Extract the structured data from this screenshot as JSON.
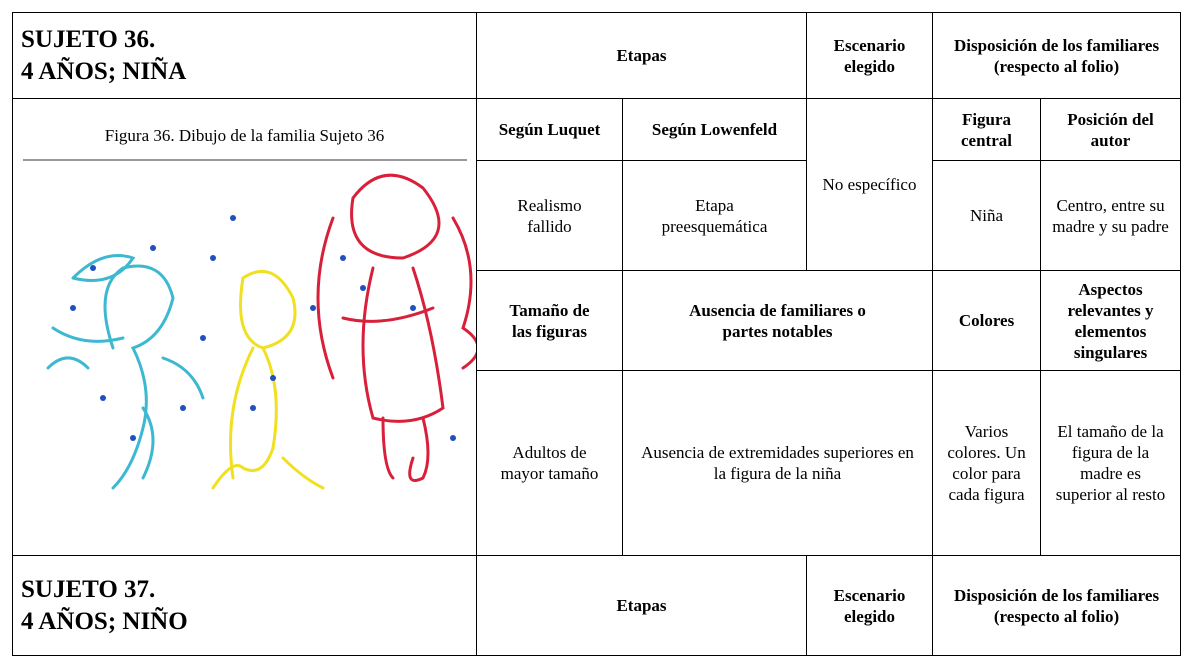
{
  "subjects": [
    {
      "title": "SUJETO 36.",
      "subtitle": "4 AÑOS; NIÑA",
      "header": {
        "stages": "Etapas",
        "scenario": "Escenario elegido",
        "layout": "Disposición de los familiares (respecto al folio)"
      },
      "figure_caption": "Figura 36. Dibujo de la familia Sujeto 36",
      "subheader": {
        "luquet": "Según Luquet",
        "lowenfeld": "Según Lowenfeld",
        "central": "Figura central",
        "author": "Posición del autor"
      },
      "values": {
        "luquet": "Realismo fallido",
        "lowenfeld": "Etapa preesquemática",
        "scenario": "No específico",
        "central": "Niña",
        "author": "Centro, entre su madre y su padre"
      },
      "subheader2": {
        "size": "Tamaño de las figuras",
        "absence": "Ausencia de familiares o partes notables",
        "colors": "Colores",
        "aspects": "Aspectos relevantes y elementos singulares"
      },
      "values2": {
        "size": "Adultos de mayor tamaño",
        "absence": "Ausencia de extremidades superiores en la figura de la niña",
        "colors": "Varios colores. Un color para cada figura",
        "aspects": "El tamaño de la figura de la madre es superior al resto"
      }
    },
    {
      "title": "SUJETO 37.",
      "subtitle": "4 AÑOS; NIÑO",
      "header": {
        "stages": "Etapas",
        "scenario": "Escenario elegido",
        "layout": "Disposición de los familiares (respecto al folio)"
      }
    }
  ]
}
